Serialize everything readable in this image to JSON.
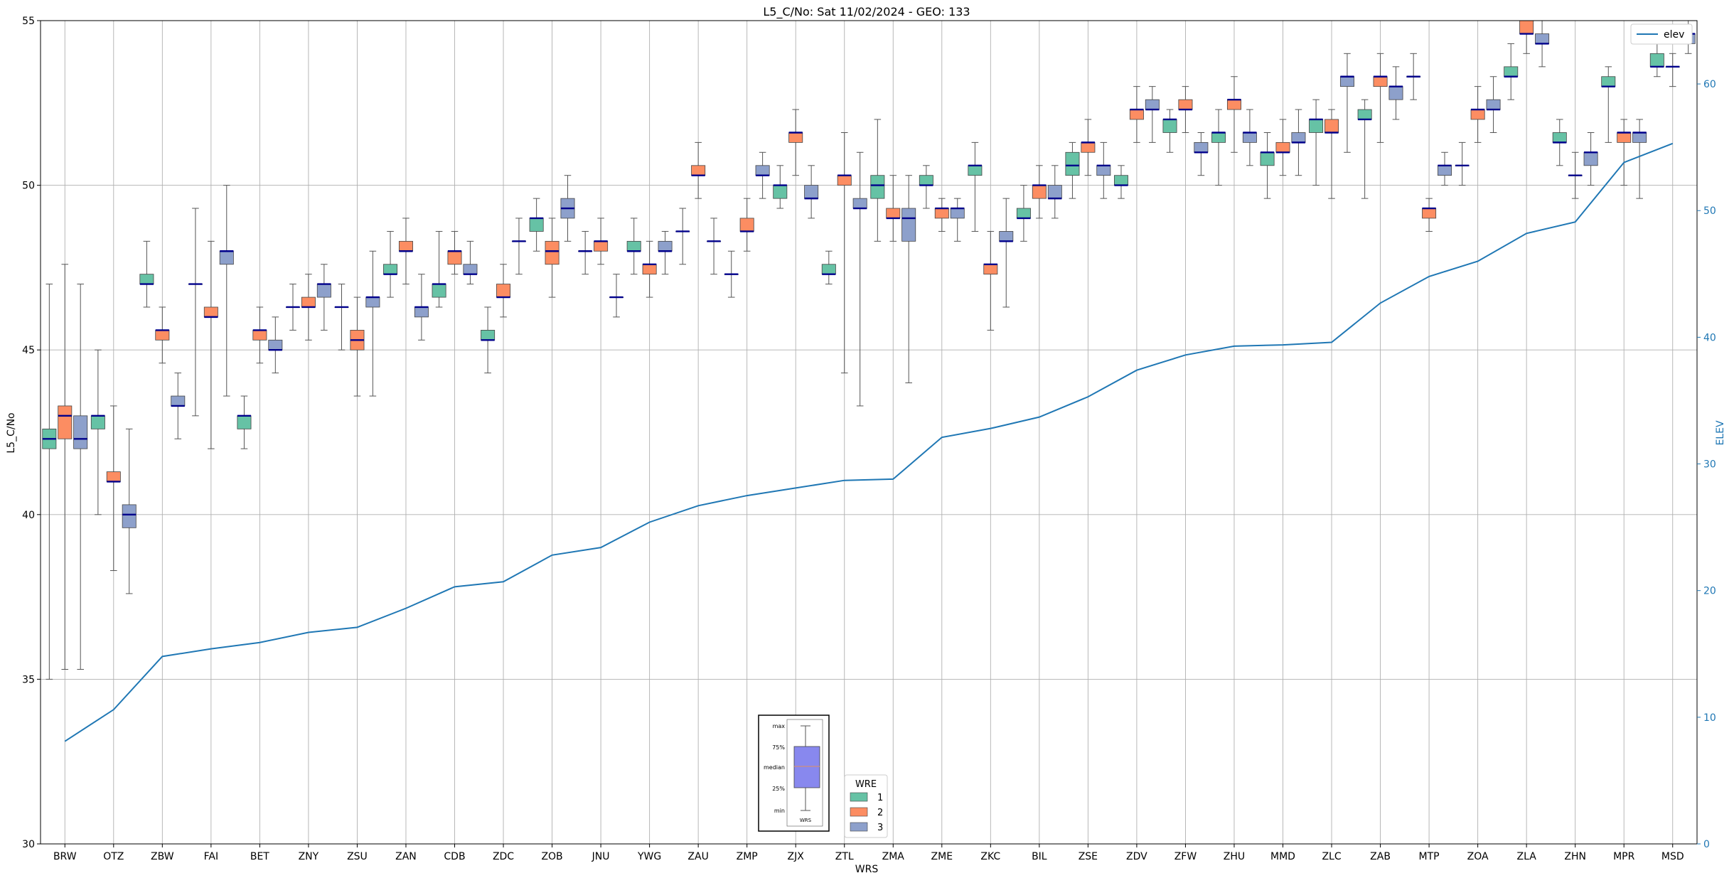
{
  "chart_data": {
    "type": "box",
    "title": "L5_C/No: Sat 11/02/2024 - GEO: 133",
    "xlabel": "WRS",
    "ylabel": "L5_C/No",
    "y2label": "ELEV",
    "ylim": [
      30,
      55
    ],
    "y2lim": [
      0,
      65
    ],
    "yticks": [
      30,
      35,
      40,
      45,
      50,
      55
    ],
    "y2ticks": [
      0,
      10,
      20,
      30,
      40,
      50,
      60
    ],
    "grid": true,
    "categories": [
      "BRW",
      "OTZ",
      "ZBW",
      "FAI",
      "BET",
      "ZNY",
      "ZSU",
      "ZAN",
      "CDB",
      "ZDC",
      "ZOB",
      "JNU",
      "YWG",
      "ZAU",
      "ZMP",
      "ZJX",
      "ZTL",
      "ZMA",
      "ZME",
      "ZKC",
      "BIL",
      "ZSE",
      "ZDV",
      "ZFW",
      "ZHU",
      "MMD",
      "ZLC",
      "ZAB",
      "MTP",
      "ZOA",
      "ZLA",
      "ZHN",
      "MPR",
      "MSD"
    ],
    "wre_colors": {
      "1": "#66c2a5",
      "2": "#fc8d62",
      "3": "#8da0cb"
    },
    "median_color": "#00008b",
    "boxes": [
      {
        "wrs": "BRW",
        "wre": 1,
        "min": 35.0,
        "q1": 42.0,
        "median": 42.3,
        "q3": 42.6,
        "max": 47.0
      },
      {
        "wrs": "BRW",
        "wre": 2,
        "min": 35.3,
        "q1": 42.3,
        "median": 43.0,
        "q3": 43.3,
        "max": 47.6
      },
      {
        "wrs": "BRW",
        "wre": 3,
        "min": 35.3,
        "q1": 42.0,
        "median": 42.3,
        "q3": 43.0,
        "max": 47.0
      },
      {
        "wrs": "OTZ",
        "wre": 1,
        "min": 40.0,
        "q1": 42.6,
        "median": 43.0,
        "q3": 43.0,
        "max": 45.0
      },
      {
        "wrs": "OTZ",
        "wre": 2,
        "min": 38.3,
        "q1": 41.0,
        "median": 41.0,
        "q3": 41.3,
        "max": 43.3
      },
      {
        "wrs": "OTZ",
        "wre": 3,
        "min": 37.6,
        "q1": 39.6,
        "median": 40.0,
        "q3": 40.3,
        "max": 42.6
      },
      {
        "wrs": "ZBW",
        "wre": 1,
        "min": 46.3,
        "q1": 47.0,
        "median": 47.0,
        "q3": 47.3,
        "max": 48.3
      },
      {
        "wrs": "ZBW",
        "wre": 2,
        "min": 44.6,
        "q1": 45.3,
        "median": 45.6,
        "q3": 45.6,
        "max": 46.3
      },
      {
        "wrs": "ZBW",
        "wre": 3,
        "min": 42.3,
        "q1": 43.3,
        "median": 43.3,
        "q3": 43.6,
        "max": 44.3
      },
      {
        "wrs": "FAI",
        "wre": 1,
        "min": 43.0,
        "q1": 47.0,
        "median": 47.0,
        "q3": 47.0,
        "max": 49.3
      },
      {
        "wrs": "FAI",
        "wre": 2,
        "min": 42.0,
        "q1": 46.0,
        "median": 46.0,
        "q3": 46.3,
        "max": 48.3
      },
      {
        "wrs": "FAI",
        "wre": 3,
        "min": 43.6,
        "q1": 47.6,
        "median": 48.0,
        "q3": 48.0,
        "max": 50.0
      },
      {
        "wrs": "BET",
        "wre": 1,
        "min": 42.0,
        "q1": 42.6,
        "median": 43.0,
        "q3": 43.0,
        "max": 43.6
      },
      {
        "wrs": "BET",
        "wre": 2,
        "min": 44.6,
        "q1": 45.3,
        "median": 45.6,
        "q3": 45.6,
        "max": 46.3
      },
      {
        "wrs": "BET",
        "wre": 3,
        "min": 44.3,
        "q1": 45.0,
        "median": 45.0,
        "q3": 45.3,
        "max": 46.0
      },
      {
        "wrs": "ZNY",
        "wre": 1,
        "min": 45.6,
        "q1": 46.3,
        "median": 46.3,
        "q3": 46.3,
        "max": 47.0
      },
      {
        "wrs": "ZNY",
        "wre": 2,
        "min": 45.3,
        "q1": 46.3,
        "median": 46.3,
        "q3": 46.6,
        "max": 47.3
      },
      {
        "wrs": "ZNY",
        "wre": 3,
        "min": 45.6,
        "q1": 46.6,
        "median": 47.0,
        "q3": 47.0,
        "max": 47.6
      },
      {
        "wrs": "ZSU",
        "wre": 1,
        "min": 45.0,
        "q1": 46.3,
        "median": 46.3,
        "q3": 46.3,
        "max": 47.0
      },
      {
        "wrs": "ZSU",
        "wre": 2,
        "min": 43.6,
        "q1": 45.0,
        "median": 45.3,
        "q3": 45.6,
        "max": 46.6
      },
      {
        "wrs": "ZSU",
        "wre": 3,
        "min": 43.6,
        "q1": 46.3,
        "median": 46.6,
        "q3": 46.6,
        "max": 48.0
      },
      {
        "wrs": "ZAN",
        "wre": 1,
        "min": 46.6,
        "q1": 47.3,
        "median": 47.3,
        "q3": 47.6,
        "max": 48.6
      },
      {
        "wrs": "ZAN",
        "wre": 2,
        "min": 47.0,
        "q1": 48.0,
        "median": 48.0,
        "q3": 48.3,
        "max": 49.0
      },
      {
        "wrs": "ZAN",
        "wre": 3,
        "min": 45.3,
        "q1": 46.0,
        "median": 46.3,
        "q3": 46.3,
        "max": 47.3
      },
      {
        "wrs": "CDB",
        "wre": 1,
        "min": 46.3,
        "q1": 46.6,
        "median": 47.0,
        "q3": 47.0,
        "max": 48.6
      },
      {
        "wrs": "CDB",
        "wre": 2,
        "min": 47.3,
        "q1": 47.6,
        "median": 48.0,
        "q3": 48.0,
        "max": 48.6
      },
      {
        "wrs": "CDB",
        "wre": 3,
        "min": 47.0,
        "q1": 47.3,
        "median": 47.3,
        "q3": 47.6,
        "max": 48.3
      },
      {
        "wrs": "ZDC",
        "wre": 1,
        "min": 44.3,
        "q1": 45.3,
        "median": 45.3,
        "q3": 45.6,
        "max": 46.3
      },
      {
        "wrs": "ZDC",
        "wre": 2,
        "min": 46.0,
        "q1": 46.6,
        "median": 46.6,
        "q3": 47.0,
        "max": 47.6
      },
      {
        "wrs": "ZDC",
        "wre": 3,
        "min": 47.3,
        "q1": 48.3,
        "median": 48.3,
        "q3": 48.3,
        "max": 49.0
      },
      {
        "wrs": "ZOB",
        "wre": 1,
        "min": 48.0,
        "q1": 48.6,
        "median": 49.0,
        "q3": 49.0,
        "max": 49.6
      },
      {
        "wrs": "ZOB",
        "wre": 2,
        "min": 46.6,
        "q1": 47.6,
        "median": 48.0,
        "q3": 48.3,
        "max": 49.0
      },
      {
        "wrs": "ZOB",
        "wre": 3,
        "min": 48.3,
        "q1": 49.0,
        "median": 49.3,
        "q3": 49.6,
        "max": 50.3
      },
      {
        "wrs": "JNU",
        "wre": 1,
        "min": 47.3,
        "q1": 48.0,
        "median": 48.0,
        "q3": 48.0,
        "max": 48.6
      },
      {
        "wrs": "JNU",
        "wre": 2,
        "min": 47.6,
        "q1": 48.0,
        "median": 48.3,
        "q3": 48.3,
        "max": 49.0
      },
      {
        "wrs": "JNU",
        "wre": 3,
        "min": 46.0,
        "q1": 46.6,
        "median": 46.6,
        "q3": 46.6,
        "max": 47.3
      },
      {
        "wrs": "YWG",
        "wre": 1,
        "min": 47.3,
        "q1": 48.0,
        "median": 48.0,
        "q3": 48.3,
        "max": 49.0
      },
      {
        "wrs": "YWG",
        "wre": 2,
        "min": 46.6,
        "q1": 47.3,
        "median": 47.6,
        "q3": 47.6,
        "max": 48.3
      },
      {
        "wrs": "YWG",
        "wre": 3,
        "min": 47.3,
        "q1": 48.0,
        "median": 48.0,
        "q3": 48.3,
        "max": 48.6
      },
      {
        "wrs": "ZAU",
        "wre": 1,
        "min": 47.6,
        "q1": 48.6,
        "median": 48.6,
        "q3": 48.6,
        "max": 49.3
      },
      {
        "wrs": "ZAU",
        "wre": 2,
        "min": 49.6,
        "q1": 50.3,
        "median": 50.3,
        "q3": 50.6,
        "max": 51.3
      },
      {
        "wrs": "ZAU",
        "wre": 3,
        "min": 47.3,
        "q1": 48.3,
        "median": 48.3,
        "q3": 48.3,
        "max": 49.0
      },
      {
        "wrs": "ZMP",
        "wre": 1,
        "min": 46.6,
        "q1": 47.3,
        "median": 47.3,
        "q3": 47.3,
        "max": 48.0
      },
      {
        "wrs": "ZMP",
        "wre": 2,
        "min": 48.0,
        "q1": 48.6,
        "median": 48.6,
        "q3": 49.0,
        "max": 49.6
      },
      {
        "wrs": "ZMP",
        "wre": 3,
        "min": 49.6,
        "q1": 50.3,
        "median": 50.3,
        "q3": 50.6,
        "max": 51.0
      },
      {
        "wrs": "ZJX",
        "wre": 1,
        "min": 49.3,
        "q1": 49.6,
        "median": 50.0,
        "q3": 50.0,
        "max": 50.6
      },
      {
        "wrs": "ZJX",
        "wre": 2,
        "min": 50.3,
        "q1": 51.3,
        "median": 51.6,
        "q3": 51.6,
        "max": 52.3
      },
      {
        "wrs": "ZJX",
        "wre": 3,
        "min": 49.0,
        "q1": 49.6,
        "median": 49.6,
        "q3": 50.0,
        "max": 50.6
      },
      {
        "wrs": "ZTL",
        "wre": 1,
        "min": 47.0,
        "q1": 47.3,
        "median": 47.3,
        "q3": 47.6,
        "max": 48.0
      },
      {
        "wrs": "ZTL",
        "wre": 2,
        "min": 44.3,
        "q1": 50.0,
        "median": 50.3,
        "q3": 50.3,
        "max": 51.6
      },
      {
        "wrs": "ZTL",
        "wre": 3,
        "min": 43.3,
        "q1": 49.3,
        "median": 49.3,
        "q3": 49.6,
        "max": 51.0
      },
      {
        "wrs": "ZMA",
        "wre": 1,
        "min": 48.3,
        "q1": 49.6,
        "median": 50.0,
        "q3": 50.3,
        "max": 52.0
      },
      {
        "wrs": "ZMA",
        "wre": 2,
        "min": 48.3,
        "q1": 49.0,
        "median": 49.0,
        "q3": 49.3,
        "max": 50.3
      },
      {
        "wrs": "ZMA",
        "wre": 3,
        "min": 44.0,
        "q1": 48.3,
        "median": 49.0,
        "q3": 49.3,
        "max": 50.3
      },
      {
        "wrs": "ZME",
        "wre": 1,
        "min": 49.3,
        "q1": 50.0,
        "median": 50.0,
        "q3": 50.3,
        "max": 50.6
      },
      {
        "wrs": "ZME",
        "wre": 2,
        "min": 48.6,
        "q1": 49.0,
        "median": 49.3,
        "q3": 49.3,
        "max": 49.6
      },
      {
        "wrs": "ZME",
        "wre": 3,
        "min": 48.3,
        "q1": 49.0,
        "median": 49.3,
        "q3": 49.3,
        "max": 49.6
      },
      {
        "wrs": "ZKC",
        "wre": 1,
        "min": 48.6,
        "q1": 50.3,
        "median": 50.6,
        "q3": 50.6,
        "max": 51.3
      },
      {
        "wrs": "ZKC",
        "wre": 2,
        "min": 45.6,
        "q1": 47.3,
        "median": 47.6,
        "q3": 47.6,
        "max": 48.6
      },
      {
        "wrs": "ZKC",
        "wre": 3,
        "min": 46.3,
        "q1": 48.3,
        "median": 48.3,
        "q3": 48.6,
        "max": 49.6
      },
      {
        "wrs": "BIL",
        "wre": 1,
        "min": 48.3,
        "q1": 49.0,
        "median": 49.0,
        "q3": 49.3,
        "max": 50.0
      },
      {
        "wrs": "BIL",
        "wre": 2,
        "min": 49.0,
        "q1": 49.6,
        "median": 50.0,
        "q3": 50.0,
        "max": 50.6
      },
      {
        "wrs": "BIL",
        "wre": 3,
        "min": 49.0,
        "q1": 49.6,
        "median": 49.6,
        "q3": 50.0,
        "max": 50.6
      },
      {
        "wrs": "ZSE",
        "wre": 1,
        "min": 49.6,
        "q1": 50.3,
        "median": 50.6,
        "q3": 51.0,
        "max": 51.3
      },
      {
        "wrs": "ZSE",
        "wre": 2,
        "min": 50.3,
        "q1": 51.0,
        "median": 51.3,
        "q3": 51.3,
        "max": 52.0
      },
      {
        "wrs": "ZSE",
        "wre": 3,
        "min": 49.6,
        "q1": 50.3,
        "median": 50.6,
        "q3": 50.6,
        "max": 51.3
      },
      {
        "wrs": "ZDV",
        "wre": 1,
        "min": 49.6,
        "q1": 50.0,
        "median": 50.0,
        "q3": 50.3,
        "max": 50.6
      },
      {
        "wrs": "ZDV",
        "wre": 2,
        "min": 51.3,
        "q1": 52.0,
        "median": 52.3,
        "q3": 52.3,
        "max": 53.0
      },
      {
        "wrs": "ZDV",
        "wre": 3,
        "min": 51.3,
        "q1": 52.3,
        "median": 52.3,
        "q3": 52.6,
        "max": 53.0
      },
      {
        "wrs": "ZFW",
        "wre": 1,
        "min": 51.0,
        "q1": 51.6,
        "median": 52.0,
        "q3": 52.0,
        "max": 52.3
      },
      {
        "wrs": "ZFW",
        "wre": 2,
        "min": 51.6,
        "q1": 52.3,
        "median": 52.3,
        "q3": 52.6,
        "max": 53.0
      },
      {
        "wrs": "ZFW",
        "wre": 3,
        "min": 50.3,
        "q1": 51.0,
        "median": 51.0,
        "q3": 51.3,
        "max": 51.6
      },
      {
        "wrs": "ZHU",
        "wre": 1,
        "min": 50.0,
        "q1": 51.3,
        "median": 51.6,
        "q3": 51.6,
        "max": 52.3
      },
      {
        "wrs": "ZHU",
        "wre": 2,
        "min": 51.0,
        "q1": 52.3,
        "median": 52.6,
        "q3": 52.6,
        "max": 53.3
      },
      {
        "wrs": "ZHU",
        "wre": 3,
        "min": 50.6,
        "q1": 51.3,
        "median": 51.6,
        "q3": 51.6,
        "max": 52.3
      },
      {
        "wrs": "MMD",
        "wre": 1,
        "min": 49.6,
        "q1": 50.6,
        "median": 51.0,
        "q3": 51.0,
        "max": 51.6
      },
      {
        "wrs": "MMD",
        "wre": 2,
        "min": 50.3,
        "q1": 51.0,
        "median": 51.0,
        "q3": 51.3,
        "max": 52.0
      },
      {
        "wrs": "MMD",
        "wre": 3,
        "min": 50.3,
        "q1": 51.3,
        "median": 51.3,
        "q3": 51.6,
        "max": 52.3
      },
      {
        "wrs": "ZLC",
        "wre": 1,
        "min": 50.0,
        "q1": 51.6,
        "median": 52.0,
        "q3": 52.0,
        "max": 52.6
      },
      {
        "wrs": "ZLC",
        "wre": 2,
        "min": 49.6,
        "q1": 51.6,
        "median": 51.6,
        "q3": 52.0,
        "max": 52.3
      },
      {
        "wrs": "ZLC",
        "wre": 3,
        "min": 51.0,
        "q1": 53.0,
        "median": 53.3,
        "q3": 53.3,
        "max": 54.0
      },
      {
        "wrs": "ZAB",
        "wre": 1,
        "min": 49.6,
        "q1": 52.0,
        "median": 52.0,
        "q3": 52.3,
        "max": 52.6
      },
      {
        "wrs": "ZAB",
        "wre": 2,
        "min": 51.3,
        "q1": 53.0,
        "median": 53.3,
        "q3": 53.3,
        "max": 54.0
      },
      {
        "wrs": "ZAB",
        "wre": 3,
        "min": 52.0,
        "q1": 52.6,
        "median": 53.0,
        "q3": 53.0,
        "max": 53.6
      },
      {
        "wrs": "MTP",
        "wre": 1,
        "min": 52.6,
        "q1": 53.3,
        "median": 53.3,
        "q3": 53.3,
        "max": 54.0
      },
      {
        "wrs": "MTP",
        "wre": 2,
        "min": 48.6,
        "q1": 49.0,
        "median": 49.3,
        "q3": 49.3,
        "max": 49.6
      },
      {
        "wrs": "MTP",
        "wre": 3,
        "min": 50.0,
        "q1": 50.3,
        "median": 50.6,
        "q3": 50.6,
        "max": 51.0
      },
      {
        "wrs": "ZOA",
        "wre": 1,
        "min": 50.0,
        "q1": 50.6,
        "median": 50.6,
        "q3": 50.6,
        "max": 51.3
      },
      {
        "wrs": "ZOA",
        "wre": 2,
        "min": 51.3,
        "q1": 52.0,
        "median": 52.3,
        "q3": 52.3,
        "max": 53.0
      },
      {
        "wrs": "ZOA",
        "wre": 3,
        "min": 51.6,
        "q1": 52.3,
        "median": 52.3,
        "q3": 52.6,
        "max": 53.3
      },
      {
        "wrs": "ZLA",
        "wre": 1,
        "min": 52.6,
        "q1": 53.3,
        "median": 53.3,
        "q3": 53.6,
        "max": 54.3
      },
      {
        "wrs": "ZLA",
        "wre": 2,
        "min": 54.0,
        "q1": 54.6,
        "median": 54.6,
        "q3": 55.0,
        "max": 55.0
      },
      {
        "wrs": "ZLA",
        "wre": 3,
        "min": 53.6,
        "q1": 54.3,
        "median": 54.3,
        "q3": 54.6,
        "max": 55.0
      },
      {
        "wrs": "ZHN",
        "wre": 1,
        "min": 50.6,
        "q1": 51.3,
        "median": 51.3,
        "q3": 51.6,
        "max": 52.0
      },
      {
        "wrs": "ZHN",
        "wre": 2,
        "min": 49.6,
        "q1": 50.3,
        "median": 50.3,
        "q3": 50.3,
        "max": 51.0
      },
      {
        "wrs": "ZHN",
        "wre": 3,
        "min": 50.0,
        "q1": 50.6,
        "median": 51.0,
        "q3": 51.0,
        "max": 51.6
      },
      {
        "wrs": "MPR",
        "wre": 1,
        "min": 51.3,
        "q1": 53.0,
        "median": 53.0,
        "q3": 53.3,
        "max": 53.6
      },
      {
        "wrs": "MPR",
        "wre": 2,
        "min": 50.0,
        "q1": 51.3,
        "median": 51.6,
        "q3": 51.6,
        "max": 52.0
      },
      {
        "wrs": "MPR",
        "wre": 3,
        "min": 49.6,
        "q1": 51.3,
        "median": 51.6,
        "q3": 51.6,
        "max": 52.0
      },
      {
        "wrs": "MSD",
        "wre": 1,
        "min": 53.3,
        "q1": 53.6,
        "median": 53.6,
        "q3": 54.0,
        "max": 54.3
      },
      {
        "wrs": "MSD",
        "wre": 2,
        "min": 53.0,
        "q1": 53.6,
        "median": 53.6,
        "q3": 53.6,
        "max": 54.0
      },
      {
        "wrs": "MSD",
        "wre": 3,
        "min": 54.0,
        "q1": 54.3,
        "median": 54.6,
        "q3": 54.6,
        "max": 55.0
      }
    ],
    "series": [
      {
        "name": "elev",
        "color": "#1f77b4",
        "values": [
          8.1,
          10.6,
          14.8,
          15.4,
          15.9,
          16.7,
          17.1,
          18.6,
          20.3,
          20.7,
          22.8,
          23.4,
          25.4,
          26.7,
          27.5,
          28.1,
          28.7,
          28.8,
          32.1,
          32.8,
          33.7,
          35.3,
          37.4,
          38.6,
          39.3,
          39.4,
          39.6,
          42.7,
          44.8,
          46.0,
          48.2,
          49.1,
          53.8,
          55.3
        ]
      }
    ],
    "legend": {
      "placement": "top-right",
      "entries": [
        "elev"
      ]
    },
    "wre_legend": {
      "title": "WRE",
      "entries": [
        "1",
        "2",
        "3"
      ],
      "placement": "bottom-center"
    },
    "key_inset": {
      "labels": [
        "max",
        "75%",
        "median",
        "25%",
        "min"
      ],
      "xlabel": "WRS"
    }
  }
}
